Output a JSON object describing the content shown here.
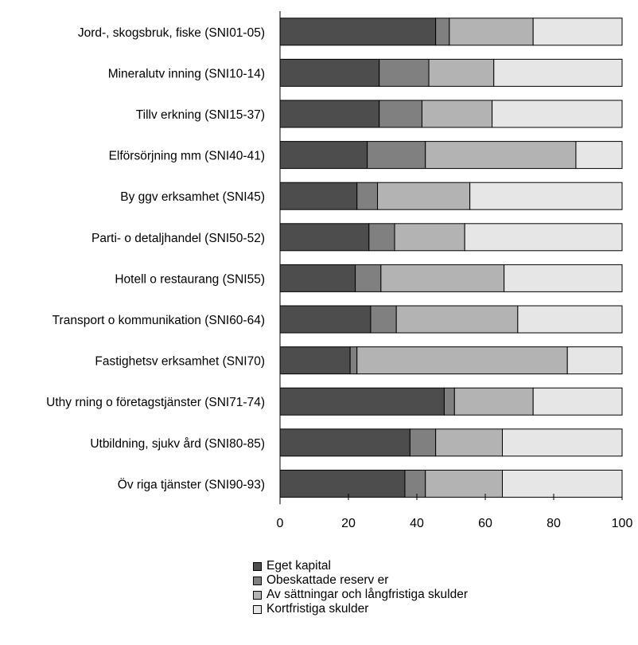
{
  "chart_data": {
    "type": "bar",
    "orientation": "horizontal",
    "stacked": true,
    "categories": [
      "Jord-, skogsbruk, fiske (SNI01-05)",
      "Mineralutv inning (SNI10-14)",
      "Tillv erkning (SNI15-37)",
      "Elförsörjning mm (SNI40-41)",
      "By ggv erksamhet (SNI45)",
      "Parti- o detaljhandel (SNI50-52)",
      "Hotell o restaurang (SNI55)",
      "Transport o kommunikation (SNI60-64)",
      "Fastighetsv erksamhet (SNI70)",
      "Uthy rning o företagstjänster (SNI71-74)",
      "Utbildning, sjukv ård (SNI80-85)",
      "Öv riga tjänster (SNI90-93)"
    ],
    "series": [
      {
        "name": "Eget kapital",
        "color": "#4d4d4d",
        "values": [
          45.5,
          29,
          29,
          25.5,
          22.5,
          26,
          22,
          26.5,
          20.5,
          48,
          38,
          36.5
        ]
      },
      {
        "name": "Obeskattade reserv er",
        "color": "#808080",
        "values": [
          4,
          14.5,
          12.5,
          17,
          6,
          7.5,
          7.5,
          7.5,
          2,
          3,
          7.5,
          6
        ]
      },
      {
        "name": "Av sättningar och långfristiga skulder",
        "color": "#b3b3b3",
        "values": [
          24.5,
          19,
          20.5,
          44,
          27,
          20.5,
          36,
          35.5,
          61.5,
          23,
          19.5,
          22.5
        ]
      },
      {
        "name": "Kortfristiga skulder",
        "color": "#e6e6e6",
        "values": [
          26,
          37.5,
          38,
          13.5,
          44.5,
          46,
          34.5,
          30.5,
          16,
          26,
          35,
          35
        ]
      }
    ],
    "xlim": [
      0,
      100
    ],
    "xticks": [
      0,
      20,
      40,
      60,
      80,
      100
    ],
    "xlabel": "",
    "ylabel": "",
    "title": "",
    "grid": false,
    "legend_position": "bottom"
  }
}
